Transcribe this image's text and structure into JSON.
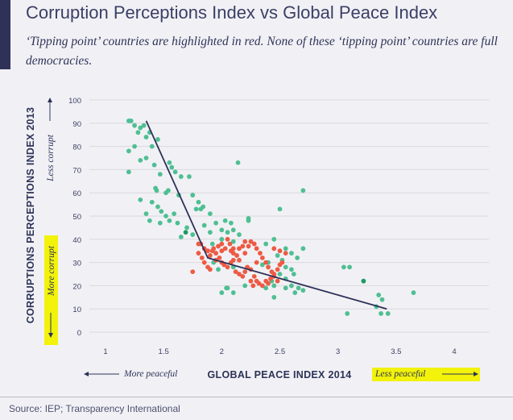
{
  "header": {
    "title": "Corruption Perceptions Index vs Global Peace Index",
    "subtitle": "‘Tipping point’ countries are highlighted in red. None of these ‘tipping point’ countries are full democracies."
  },
  "footer": {
    "source": "Source: IEP; Transparency International"
  },
  "colors": {
    "green": "#4fbf93",
    "red": "#ee5a44",
    "dark_green": "#1e9a63",
    "trend": "#2f3158",
    "highlight": "#f2f20a",
    "grid": "#d8d8de",
    "accent": "#2f3158"
  },
  "chart_data": {
    "type": "scatter",
    "xlabel": "GLOBAL PEACE INDEX 2014",
    "ylabel": "CORRUPTIONS PERCEPTIONS INDEX 2013",
    "x_left_note": "More peaceful",
    "x_right_note": "Less peaceful",
    "y_top_note": "Less corrupt",
    "y_bottom_note": "More corrupt",
    "xlim": [
      1,
      4
    ],
    "ylim": [
      0,
      100
    ],
    "x_ticks": [
      1,
      1.5,
      2,
      2.5,
      3,
      3.5,
      4
    ],
    "x_tick_labels": [
      "1",
      "1.5",
      "2",
      "2.5",
      "3",
      "3.5",
      "4"
    ],
    "y_ticks": [
      0,
      10,
      20,
      30,
      40,
      50,
      60,
      70,
      80,
      90,
      100
    ],
    "y_tick_labels": [
      "0",
      "10",
      "20",
      "30",
      "40",
      "50",
      "60",
      "70",
      "80",
      "90",
      "100"
    ],
    "grid": "horizontal",
    "series": [
      {
        "color": "#4fbf93",
        "points": [
          [
            1.2,
            91
          ],
          [
            1.22,
            91
          ],
          [
            1.25,
            89
          ],
          [
            1.3,
            88
          ],
          [
            1.33,
            89
          ],
          [
            1.28,
            86
          ],
          [
            1.38,
            86
          ],
          [
            1.35,
            84
          ],
          [
            1.4,
            80
          ],
          [
            1.45,
            83
          ],
          [
            1.2,
            78
          ],
          [
            1.25,
            80
          ],
          [
            1.3,
            74
          ],
          [
            1.35,
            75
          ],
          [
            1.42,
            72
          ],
          [
            1.2,
            69
          ],
          [
            1.47,
            68
          ],
          [
            1.55,
            73
          ],
          [
            1.57,
            71
          ],
          [
            1.6,
            69
          ],
          [
            1.65,
            67
          ],
          [
            1.72,
            67
          ],
          [
            1.43,
            62
          ],
          [
            1.44,
            61
          ],
          [
            1.52,
            60
          ],
          [
            1.54,
            61
          ],
          [
            1.63,
            59
          ],
          [
            1.75,
            59
          ],
          [
            1.8,
            56
          ],
          [
            1.84,
            54
          ],
          [
            1.3,
            57
          ],
          [
            1.4,
            56
          ],
          [
            1.45,
            54
          ],
          [
            1.35,
            51
          ],
          [
            1.48,
            52
          ],
          [
            1.52,
            50
          ],
          [
            1.59,
            51
          ],
          [
            1.78,
            53
          ],
          [
            1.82,
            53
          ],
          [
            1.9,
            51
          ],
          [
            1.38,
            48
          ],
          [
            1.47,
            47
          ],
          [
            1.55,
            48
          ],
          [
            1.62,
            47
          ],
          [
            1.7,
            45
          ],
          [
            1.85,
            46
          ],
          [
            1.95,
            47
          ],
          [
            2.03,
            48
          ],
          [
            2.08,
            47
          ],
          [
            2.23,
            49
          ],
          [
            2.23,
            48
          ],
          [
            2.5,
            53
          ],
          [
            1.65,
            41
          ],
          [
            1.75,
            42
          ],
          [
            1.9,
            43
          ],
          [
            2.0,
            44
          ],
          [
            2.05,
            43
          ],
          [
            2.1,
            44
          ],
          [
            2.15,
            42
          ],
          [
            1.92,
            38
          ],
          [
            2.0,
            40
          ],
          [
            2.1,
            39
          ],
          [
            2.38,
            38
          ],
          [
            2.45,
            40
          ],
          [
            2.55,
            36
          ],
          [
            2.6,
            34
          ],
          [
            2.65,
            32
          ],
          [
            2.7,
            36
          ],
          [
            2.52,
            31
          ],
          [
            2.48,
            33
          ],
          [
            2.4,
            30
          ],
          [
            2.35,
            29
          ],
          [
            2.55,
            28
          ],
          [
            2.6,
            27
          ],
          [
            2.62,
            25
          ],
          [
            2.5,
            25
          ],
          [
            2.55,
            23
          ],
          [
            2.43,
            22
          ],
          [
            2.45,
            20
          ],
          [
            2.38,
            19
          ],
          [
            2.6,
            20
          ],
          [
            2.66,
            19
          ],
          [
            2.7,
            18
          ],
          [
            2.63,
            17
          ],
          [
            2.55,
            19
          ],
          [
            2.45,
            15
          ],
          [
            2.2,
            20
          ],
          [
            2.05,
            19
          ],
          [
            2.1,
            17
          ],
          [
            2.0,
            17
          ],
          [
            2.04,
            19
          ],
          [
            2.14,
            73
          ],
          [
            2.7,
            61
          ],
          [
            3.05,
            28
          ],
          [
            3.1,
            28
          ],
          [
            3.22,
            22
          ],
          [
            3.08,
            8
          ],
          [
            3.35,
            16
          ],
          [
            3.38,
            14
          ],
          [
            3.37,
            8
          ],
          [
            3.43,
            8
          ],
          [
            3.33,
            11
          ],
          [
            3.65,
            17
          ],
          [
            1.97,
            27
          ],
          [
            1.93,
            30
          ],
          [
            2.1,
            28
          ]
        ]
      },
      {
        "color": "#ee5a44",
        "points": [
          [
            1.8,
            38
          ],
          [
            1.82,
            38
          ],
          [
            1.85,
            36
          ],
          [
            1.88,
            35
          ],
          [
            1.9,
            33
          ],
          [
            1.93,
            36
          ],
          [
            1.95,
            34
          ],
          [
            1.97,
            37
          ],
          [
            2.0,
            38
          ],
          [
            2.03,
            36
          ],
          [
            2.05,
            40
          ],
          [
            2.07,
            38
          ],
          [
            2.08,
            35
          ],
          [
            2.1,
            36
          ],
          [
            2.13,
            33
          ],
          [
            2.15,
            36
          ],
          [
            2.18,
            37
          ],
          [
            2.2,
            39
          ],
          [
            2.23,
            37
          ],
          [
            2.25,
            39
          ],
          [
            2.28,
            38
          ],
          [
            2.3,
            36
          ],
          [
            2.33,
            34
          ],
          [
            2.35,
            32
          ],
          [
            2.38,
            30
          ],
          [
            2.4,
            28
          ],
          [
            2.43,
            26
          ],
          [
            2.45,
            24
          ],
          [
            2.48,
            27
          ],
          [
            2.5,
            29
          ],
          [
            1.8,
            34
          ],
          [
            1.83,
            32
          ],
          [
            1.85,
            30
          ],
          [
            1.88,
            28
          ],
          [
            1.9,
            27
          ],
          [
            1.75,
            26
          ],
          [
            1.95,
            31
          ],
          [
            1.98,
            32
          ],
          [
            2.0,
            30
          ],
          [
            2.02,
            29
          ],
          [
            2.05,
            28
          ],
          [
            2.08,
            30
          ],
          [
            2.1,
            31
          ],
          [
            2.12,
            26
          ],
          [
            2.15,
            25
          ],
          [
            2.18,
            24
          ],
          [
            2.2,
            26
          ],
          [
            2.22,
            28
          ],
          [
            2.25,
            27
          ],
          [
            2.28,
            24
          ],
          [
            2.3,
            22
          ],
          [
            2.32,
            21
          ],
          [
            2.35,
            20
          ],
          [
            2.38,
            22
          ],
          [
            2.4,
            21
          ],
          [
            2.42,
            23
          ],
          [
            2.45,
            25
          ],
          [
            2.48,
            22
          ],
          [
            2.52,
            30
          ],
          [
            2.55,
            34
          ],
          [
            2.5,
            35
          ],
          [
            2.45,
            36
          ],
          [
            2.2,
            34
          ],
          [
            2.15,
            31
          ],
          [
            2.1,
            34
          ],
          [
            2.0,
            35
          ],
          [
            1.92,
            35
          ],
          [
            2.25,
            22
          ],
          [
            2.27,
            20
          ],
          [
            2.3,
            30
          ]
        ]
      },
      {
        "color": "#1e9a63",
        "points": [
          [
            1.69,
            43
          ],
          [
            3.22,
            22
          ]
        ]
      }
    ],
    "trend_line": [
      [
        1.35,
        91
      ],
      [
        1.88,
        32
      ],
      [
        3.42,
        10
      ]
    ]
  }
}
